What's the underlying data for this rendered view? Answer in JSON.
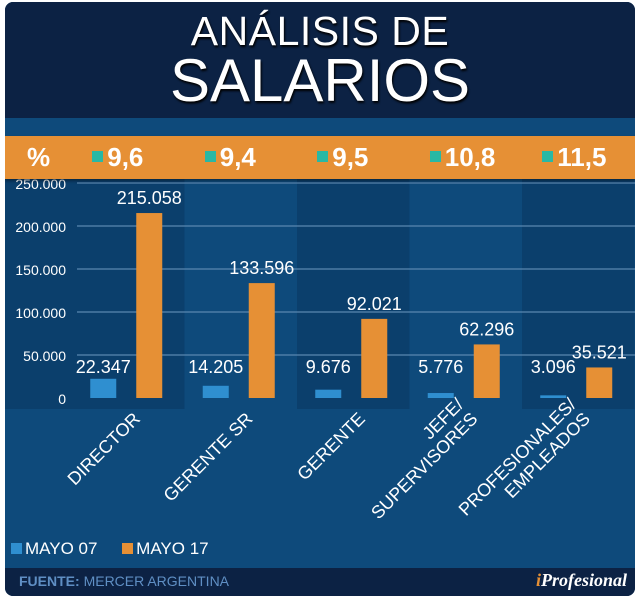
{
  "title_line1": "ANÁLISIS DE",
  "title_line2": "SALARIOS",
  "percent_label": "%",
  "colors": {
    "mayo07": "#2f8fd0",
    "mayo17": "#e69035",
    "pct_marker": "#29b8a4"
  },
  "chart_data": {
    "type": "bar",
    "title": "ANÁLISIS DE SALARIOS",
    "categories": [
      "DIRECTOR",
      "GERENTE SR",
      "GERENTE",
      "JEFE/ SUPERVISORES",
      "PROFESIONALES/ EMPLEADOS"
    ],
    "category_lines": [
      [
        "DIRECTOR"
      ],
      [
        "GERENTE SR"
      ],
      [
        "GERENTE"
      ],
      [
        "JEFE/",
        "SUPERVISORES"
      ],
      [
        "PROFESIONALES/",
        "EMPLEADOS"
      ]
    ],
    "series": [
      {
        "name": "MAYO 07",
        "values": [
          22347,
          14205,
          9676,
          5776,
          3096
        ],
        "labels": [
          "22.347",
          "14.205",
          "9.676",
          "5.776",
          "3.096"
        ]
      },
      {
        "name": "MAYO 17",
        "values": [
          215058,
          133596,
          92021,
          62296,
          35521
        ],
        "labels": [
          "215.058",
          "133.596",
          "92.021",
          "62.296",
          "35.521"
        ]
      }
    ],
    "pct_change": [
      "9,6",
      "9,4",
      "9,5",
      "10,8",
      "11,5"
    ],
    "yticks": [
      0,
      50000,
      100000,
      150000,
      200000,
      250000
    ],
    "ytick_labels": [
      "0",
      "50.000",
      "100.000",
      "150.000",
      "200.000",
      "250.000"
    ],
    "ylim": [
      0,
      250000
    ],
    "grid": true,
    "legend_position": "bottom-left"
  },
  "footer": {
    "source_label": "FUENTE:",
    "source": "MERCER ARGENTINA",
    "logo_i": "i",
    "logo_rest": "Profesional"
  }
}
